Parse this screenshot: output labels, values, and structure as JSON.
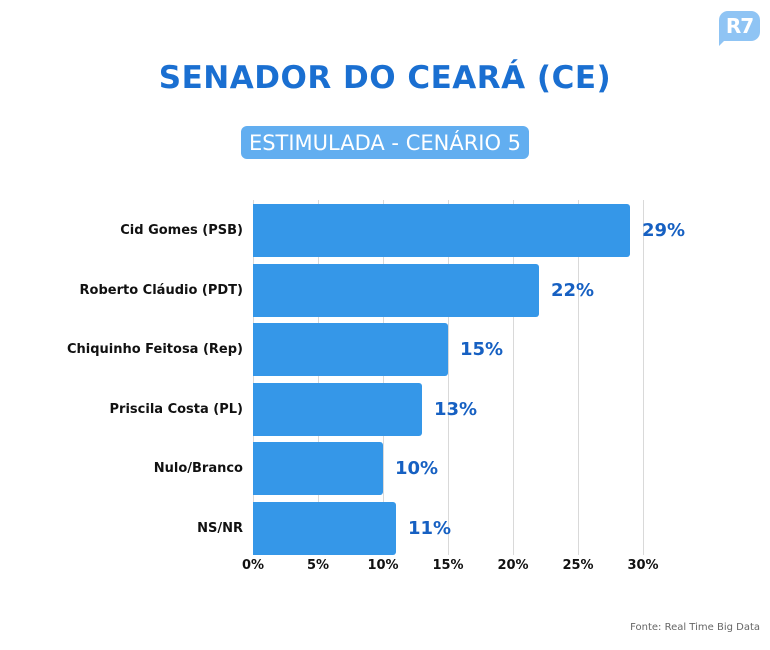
{
  "logo": {
    "text": "R7",
    "color": "#8fc4f4"
  },
  "header": {
    "title": "SENADOR DO CEARÁ (CE)",
    "subtitle": "ESTIMULADA - CENÁRIO 5"
  },
  "colors": {
    "bar": "#3597e8",
    "value_label": "#1660c2",
    "title": "#1a6fd1",
    "subtitle_bg": "#62aef0"
  },
  "source": "Fonte: Real Time Big Data",
  "chart_data": {
    "type": "bar",
    "orientation": "horizontal",
    "title": "SENADOR DO CEARÁ (CE)",
    "subtitle": "ESTIMULADA - CENÁRIO 5",
    "categories": [
      "Cid Gomes (PSB)",
      "Roberto Cláudio (PDT)",
      "Chiquinho Feitosa (Rep)",
      "Priscila Costa (PL)",
      "Nulo/Branco",
      "NS/NR"
    ],
    "values": [
      29,
      22,
      15,
      13,
      10,
      11
    ],
    "value_labels": [
      "29%",
      "22%",
      "15%",
      "13%",
      "10%",
      "11%"
    ],
    "xlabel": "",
    "ylabel": "",
    "xlim": [
      0,
      30
    ],
    "xticks": [
      "0%",
      "5%",
      "10%",
      "15%",
      "20%",
      "25%",
      "30%"
    ],
    "grid": true,
    "legend": null,
    "source": "Fonte: Real Time Big Data"
  }
}
